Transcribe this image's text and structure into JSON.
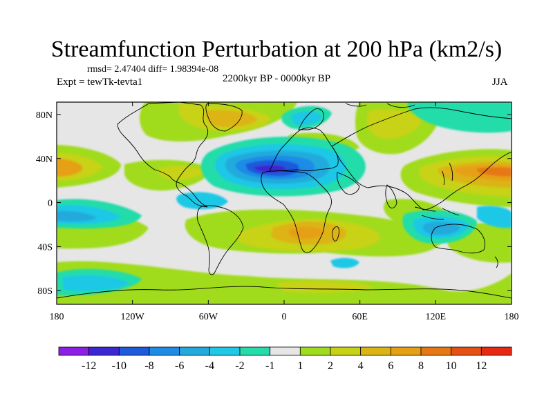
{
  "title": "Streamfunction Perturbation at 200 hPa (km2/s)",
  "stats": "rmsd= 2.47404 diff= 1.98394e-08",
  "expt": "Expt = tewTk-tevta1",
  "period": "2200kyr BP - 0000kyr BP",
  "season": "JJA",
  "lat_ticks": [
    {
      "label": "80N",
      "lat": 80
    },
    {
      "label": "40N",
      "lat": 40
    },
    {
      "label": "0",
      "lat": 0
    },
    {
      "label": "40S",
      "lat": -40
    },
    {
      "label": "80S",
      "lat": -80
    }
  ],
  "lon_ticks": [
    {
      "label": "180",
      "lon": -180
    },
    {
      "label": "120W",
      "lon": -120
    },
    {
      "label": "60W",
      "lon": -60
    },
    {
      "label": "0",
      "lon": 0
    },
    {
      "label": "60E",
      "lon": 60
    },
    {
      "label": "120E",
      "lon": 120
    },
    {
      "label": "180",
      "lon": 180
    }
  ],
  "colorbar": {
    "colors": [
      "#8a1fe6",
      "#3c28d2",
      "#1e5adc",
      "#1e8ce6",
      "#23aadc",
      "#1ec8e6",
      "#23dcaa",
      "#e6e6e6",
      "#a0dc1e",
      "#c8d214",
      "#dcb414",
      "#e6a014",
      "#e67814",
      "#e65014",
      "#e62814"
    ],
    "labels": [
      "-12",
      "-10",
      "-8",
      "-6",
      "-4",
      "-2",
      "-1",
      "1",
      "2",
      "4",
      "6",
      "8",
      "10",
      "12"
    ]
  }
}
